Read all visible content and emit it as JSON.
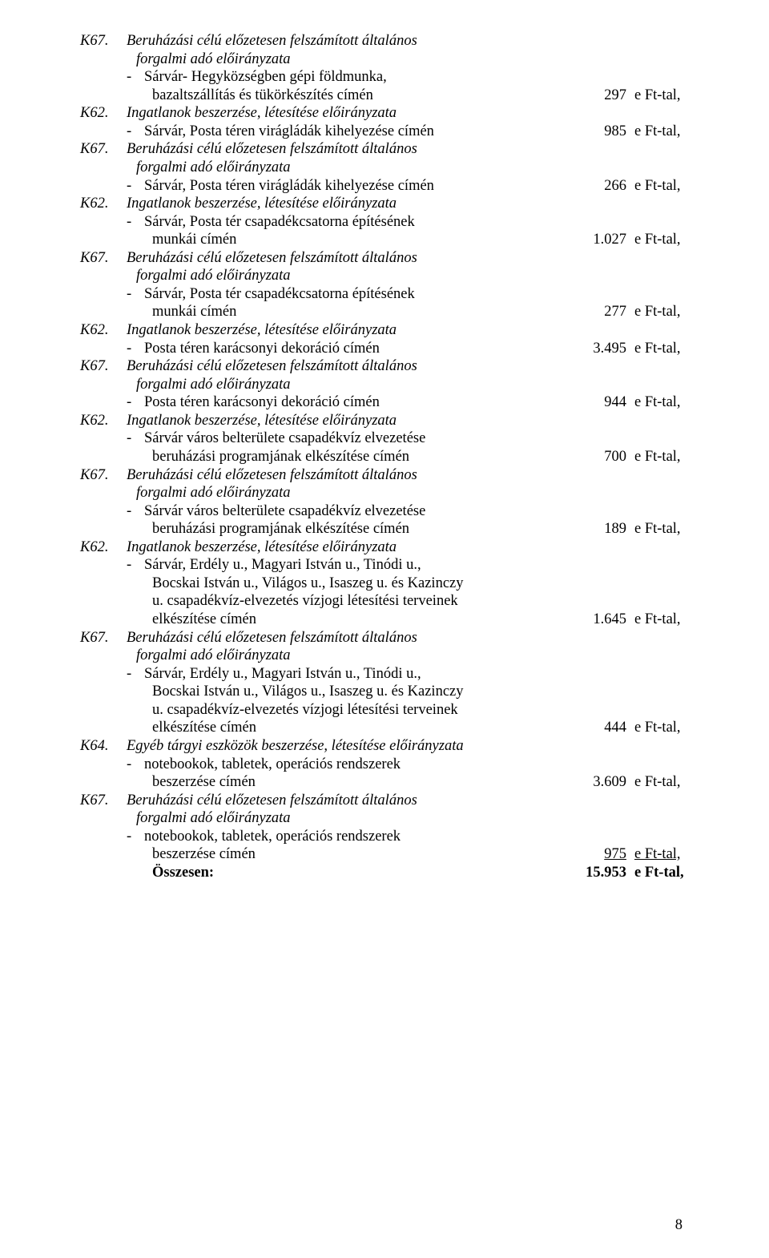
{
  "fontsize_pt": 14,
  "font_family": "Times New Roman",
  "text_color": "#000000",
  "background_color": "#ffffff",
  "unit": "e Ft-tal,",
  "dash": "-",
  "page_number": "8",
  "total": {
    "label": "Összesen:",
    "amount": "15.953",
    "unit": "e Ft-tal,"
  },
  "entries": [
    {
      "code": "K67.",
      "title": "Beruházási célú előzetesen felszámított általános",
      "title_italic": true,
      "title2": "forgalmi adó előirányzata",
      "title2_italic": true,
      "items": [
        {
          "lines": [
            "Sárvár- Hegyközségben gépi földmunka,",
            "bazaltszállítás és tükörkészítés címén"
          ],
          "amount": "297"
        }
      ]
    },
    {
      "code": "K62.",
      "title": "Ingatlanok beszerzése, létesítése előirányzata",
      "title_italic": true,
      "items": [
        {
          "lines": [
            "Sárvár, Posta téren virágládák kihelyezése címén"
          ],
          "amount": "985"
        }
      ]
    },
    {
      "code": "K67.",
      "title": "Beruházási célú előzetesen felszámított általános",
      "title_italic": true,
      "title2": "forgalmi adó előirányzata",
      "title2_italic": true,
      "items": [
        {
          "lines": [
            "Sárvár, Posta téren virágládák kihelyezése címén"
          ],
          "amount": "266"
        }
      ]
    },
    {
      "code": "K62.",
      "title": "Ingatlanok beszerzése, létesítése előirányzata",
      "title_italic": true,
      "items": [
        {
          "lines": [
            "Sárvár, Posta tér csapadékcsatorna építésének",
            "munkái címén"
          ],
          "amount": "1.027"
        }
      ]
    },
    {
      "code": "K67.",
      "title": "Beruházási célú előzetesen felszámított általános",
      "title_italic": true,
      "title2": "forgalmi adó előirányzata",
      "title2_italic": true,
      "items": [
        {
          "lines": [
            "Sárvár, Posta tér csapadékcsatorna építésének",
            "munkái címén"
          ],
          "amount": "277"
        }
      ]
    },
    {
      "code": "K62.",
      "title": "Ingatlanok beszerzése, létesítése előirányzata",
      "title_italic": true,
      "items": [
        {
          "lines": [
            "Posta téren karácsonyi dekoráció címén"
          ],
          "amount": "3.495"
        }
      ]
    },
    {
      "code": "K67.",
      "title": "Beruházási célú előzetesen felszámított általános",
      "title_italic": true,
      "title2": "forgalmi adó előirányzata",
      "title2_italic": true,
      "items": [
        {
          "lines": [
            "Posta téren karácsonyi dekoráció címén"
          ],
          "amount": "944"
        }
      ]
    },
    {
      "code": "K62.",
      "title": "Ingatlanok beszerzése, létesítése előirányzata",
      "title_italic": true,
      "items": [
        {
          "lines": [
            "Sárvár város belterülete csapadékvíz elvezetése",
            "beruházási programjának elkészítése címén"
          ],
          "amount": "700"
        }
      ]
    },
    {
      "code": "K67.",
      "title": "Beruházási célú előzetesen felszámított általános",
      "title_italic": true,
      "title2": "forgalmi adó előirányzata",
      "title2_italic": true,
      "items": [
        {
          "lines": [
            "Sárvár város belterülete csapadékvíz elvezetése",
            "beruházási programjának elkészítése címén"
          ],
          "amount": "189"
        }
      ]
    },
    {
      "code": "K62.",
      "title": "Ingatlanok beszerzése, létesítése előirányzata",
      "title_italic": true,
      "items": [
        {
          "lines": [
            "Sárvár, Erdély u., Magyari István u., Tinódi u.,",
            "Bocskai István u., Világos u., Isaszeg u. és Kazinczy",
            "u. csapadékvíz-elvezetés vízjogi létesítési terveinek",
            "elkészítése címén"
          ],
          "amount": "1.645"
        }
      ]
    },
    {
      "code": "K67.",
      "title": "Beruházási célú előzetesen felszámított általános",
      "title_italic": true,
      "title2": "forgalmi adó előirányzata",
      "title2_italic": true,
      "items": [
        {
          "lines": [
            "Sárvár, Erdély u., Magyari István u., Tinódi u.,",
            "Bocskai István u., Világos u., Isaszeg u. és Kazinczy",
            "u. csapadékvíz-elvezetés vízjogi létesítési terveinek",
            "elkészítése címén"
          ],
          "amount": "444"
        }
      ]
    },
    {
      "code": "K64.",
      "title": "Egyéb tárgyi eszközök beszerzése, létesítése előirányzata",
      "title_italic": true,
      "items": [
        {
          "lines": [
            "notebookok, tabletek, operációs rendszerek",
            "beszerzése címén"
          ],
          "amount": "3.609"
        }
      ]
    },
    {
      "code": "K67.",
      "title": "Beruházási célú előzetesen felszámított általános",
      "title_italic": true,
      "title2": "forgalmi adó előirányzata",
      "title2_italic": true,
      "items": [
        {
          "lines": [
            "notebookok, tabletek, operációs rendszerek",
            "beszerzése címén"
          ],
          "amount": "975",
          "underline": true
        }
      ]
    }
  ]
}
